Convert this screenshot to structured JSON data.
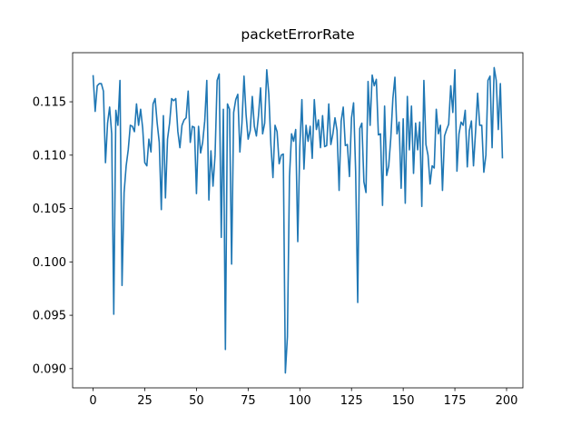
{
  "chart_data": {
    "type": "line",
    "title": "packetErrorRate",
    "color": "#1f77b4",
    "grid": false,
    "xlim": [
      -9.9,
      207.9
    ],
    "xticks": [
      0,
      25,
      50,
      75,
      100,
      125,
      150,
      175,
      200
    ],
    "ylim": [
      0.0882,
      0.1196
    ],
    "yticks": [
      {
        "value": 0.09,
        "label": "0.090"
      },
      0.095,
      {
        "value": 0.1,
        "label": "0.100"
      },
      0.105,
      {
        "value": 0.11,
        "label": "0.110"
      },
      0.115
    ],
    "values": [
      0.1175,
      0.1141,
      0.1165,
      0.1167,
      0.1167,
      0.116,
      0.1093,
      0.113,
      0.1145,
      0.112,
      0.0951,
      0.1142,
      0.1128,
      0.117,
      0.0978,
      0.1065,
      0.109,
      0.1105,
      0.1128,
      0.1127,
      0.1122,
      0.1148,
      0.1128,
      0.1143,
      0.1125,
      0.1093,
      0.109,
      0.1115,
      0.1103,
      0.1148,
      0.1153,
      0.113,
      0.1112,
      0.1049,
      0.1137,
      0.106,
      0.1115,
      0.113,
      0.1153,
      0.1151,
      0.1153,
      0.1122,
      0.1107,
      0.1128,
      0.1133,
      0.1135,
      0.116,
      0.1112,
      0.1127,
      0.1126,
      0.1064,
      0.1127,
      0.1102,
      0.1112,
      0.1132,
      0.117,
      0.1058,
      0.1104,
      0.1071,
      0.11,
      0.117,
      0.1176,
      0.1023,
      0.1143,
      0.0918,
      0.1148,
      0.1143,
      0.0998,
      0.114,
      0.1152,
      0.1157,
      0.1103,
      0.113,
      0.1174,
      0.1138,
      0.1115,
      0.1123,
      0.1155,
      0.1127,
      0.1118,
      0.1137,
      0.1163,
      0.112,
      0.113,
      0.118,
      0.1157,
      0.111,
      0.1079,
      0.1128,
      0.1122,
      0.1092,
      0.11,
      0.1101,
      0.0896,
      0.093,
      0.108,
      0.112,
      0.1113,
      0.1124,
      0.1019,
      0.1108,
      0.1152,
      0.1087,
      0.1128,
      0.1113,
      0.1127,
      0.1097,
      0.1152,
      0.1124,
      0.1133,
      0.1107,
      0.1137,
      0.1108,
      0.1109,
      0.1148,
      0.111,
      0.112,
      0.1135,
      0.1123,
      0.1067,
      0.1132,
      0.1145,
      0.1109,
      0.111,
      0.108,
      0.1135,
      0.1149,
      0.1085,
      0.0962,
      0.1125,
      0.113,
      0.1075,
      0.1065,
      0.1169,
      0.1128,
      0.1175,
      0.1165,
      0.1171,
      0.1119,
      0.112,
      0.1053,
      0.1146,
      0.1081,
      0.109,
      0.1116,
      0.1153,
      0.1173,
      0.112,
      0.1131,
      0.1069,
      0.1134,
      0.1055,
      0.1155,
      0.1105,
      0.1146,
      0.1083,
      0.113,
      0.1105,
      0.1131,
      0.1052,
      0.117,
      0.111,
      0.11,
      0.1073,
      0.109,
      0.1088,
      0.1143,
      0.112,
      0.1128,
      0.1067,
      0.1118,
      0.1124,
      0.1129,
      0.1165,
      0.114,
      0.118,
      0.1085,
      0.112,
      0.1131,
      0.1128,
      0.1142,
      0.1089,
      0.1123,
      0.1132,
      0.109,
      0.1122,
      0.1158,
      0.1128,
      0.1128,
      0.1084,
      0.11,
      0.117,
      0.1174,
      0.1107,
      0.1182,
      0.117,
      0.1124,
      0.1167,
      0.1097
    ]
  }
}
